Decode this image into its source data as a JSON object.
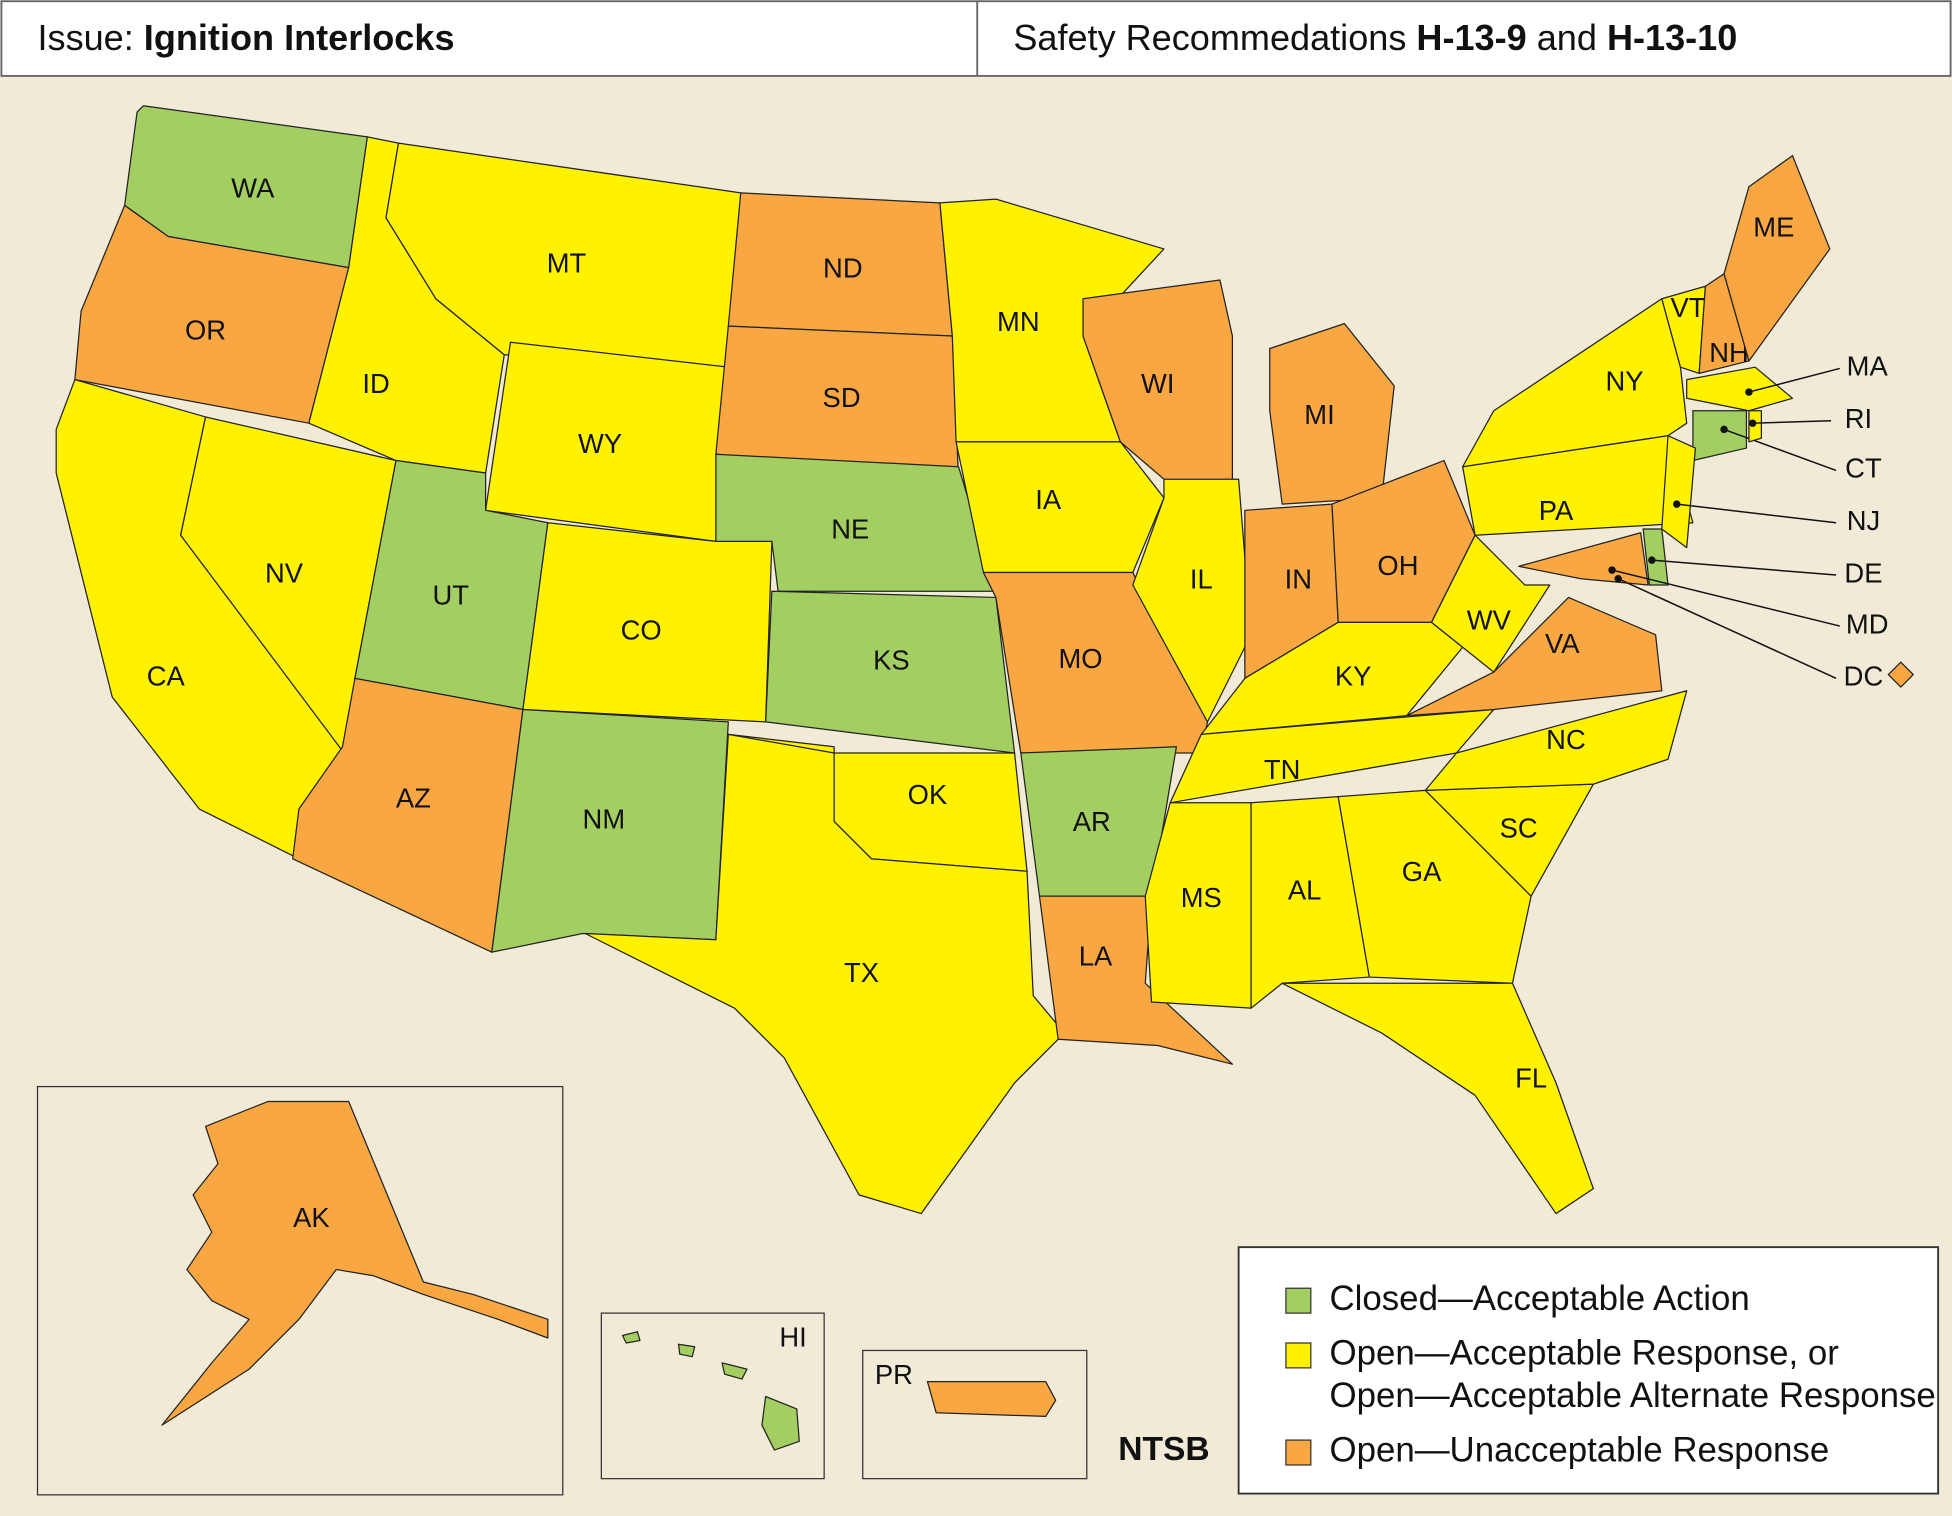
{
  "header": {
    "left": {
      "label": "Issue:",
      "title": "Ignition Interlocks"
    },
    "right": {
      "label": "Safety Recommedations",
      "first": "H-13-9",
      "joiner": "and",
      "second": "H-13-10"
    }
  },
  "legend": [
    {
      "lines": [
        "Closed—Acceptable Action"
      ],
      "color": "#a3cf62"
    },
    {
      "lines": [
        "Open—Acceptable Response, or",
        "Open—Acceptable Alternate Response"
      ],
      "color": "#fff200"
    },
    {
      "lines": [
        "Open—Unacceptable Response"
      ],
      "color": "#f9a743"
    }
  ],
  "states": [
    {
      "label": "WA",
      "legend": 0
    },
    {
      "label": "OR",
      "legend": 2
    },
    {
      "label": "CA",
      "legend": 1
    },
    {
      "label": "NV",
      "legend": 1
    },
    {
      "label": "ID",
      "legend": 1
    },
    {
      "label": "MT",
      "legend": 1
    },
    {
      "label": "WY",
      "legend": 1
    },
    {
      "label": "UT",
      "legend": 0
    },
    {
      "label": "CO",
      "legend": 1
    },
    {
      "label": "AZ",
      "legend": 2
    },
    {
      "label": "NM",
      "legend": 0
    },
    {
      "label": "ND",
      "legend": 2
    },
    {
      "label": "SD",
      "legend": 2
    },
    {
      "label": "NE",
      "legend": 0
    },
    {
      "label": "KS",
      "legend": 0
    },
    {
      "label": "OK",
      "legend": 1
    },
    {
      "label": "TX",
      "legend": 1
    },
    {
      "label": "MN",
      "legend": 1
    },
    {
      "label": "IA",
      "legend": 1
    },
    {
      "label": "MO",
      "legend": 2
    },
    {
      "label": "AR",
      "legend": 0
    },
    {
      "label": "LA",
      "legend": 2
    },
    {
      "label": "WI",
      "legend": 2
    },
    {
      "label": "IL",
      "legend": 1
    },
    {
      "label": "MI",
      "legend": 2
    },
    {
      "label": "IN",
      "legend": 2
    },
    {
      "label": "OH",
      "legend": 2
    },
    {
      "label": "KY",
      "legend": 1
    },
    {
      "label": "TN",
      "legend": 1
    },
    {
      "label": "MS",
      "legend": 1
    },
    {
      "label": "AL",
      "legend": 1
    },
    {
      "label": "GA",
      "legend": 1
    },
    {
      "label": "FL",
      "legend": 1
    },
    {
      "label": "SC",
      "legend": 1
    },
    {
      "label": "NC",
      "legend": 1
    },
    {
      "label": "VA",
      "legend": 2
    },
    {
      "label": "WV",
      "legend": 1
    },
    {
      "label": "PA",
      "legend": 1
    },
    {
      "label": "NY",
      "legend": 1
    },
    {
      "label": "VT",
      "legend": 1
    },
    {
      "label": "NH",
      "legend": 2
    },
    {
      "label": "ME",
      "legend": 2
    },
    {
      "label": "MA",
      "legend": 1
    },
    {
      "label": "CT",
      "legend": 0
    },
    {
      "label": "RI",
      "legend": 1
    },
    {
      "label": "NJ",
      "legend": 1
    },
    {
      "label": "DE",
      "legend": 0
    },
    {
      "label": "MD",
      "legend": 2
    },
    {
      "label": "DC",
      "legend": 2
    },
    {
      "label": "AK",
      "legend": 2
    },
    {
      "label": "HI",
      "legend": 0
    },
    {
      "label": "PR",
      "legend": 2
    }
  ],
  "credit": "NTSB"
}
